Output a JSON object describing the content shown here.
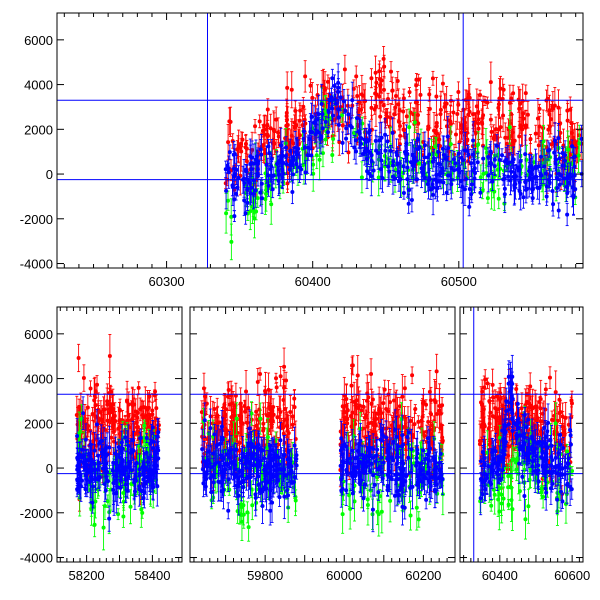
{
  "chart_data": [
    {
      "type": "scatter",
      "title": "",
      "xlabel": "",
      "ylabel": "",
      "xlim": [
        60225,
        60585
      ],
      "ylim": [
        -4200,
        7200
      ],
      "x_ticks": [
        60300,
        60400,
        60500
      ],
      "y_ticks": [
        -4000,
        -2000,
        0,
        2000,
        4000,
        6000
      ],
      "hlines": [
        3300,
        -250
      ],
      "vlines": [
        60328,
        60503
      ],
      "grid": false,
      "series": [
        {
          "color": "#ff0000",
          "y_center_profile": [
            [
              60340,
              600
            ],
            [
              60380,
              1500
            ],
            [
              60410,
              2800
            ],
            [
              60440,
              3200
            ],
            [
              60480,
              2300
            ],
            [
              60530,
              2300
            ],
            [
              60585,
              1500
            ]
          ],
          "y_spread": 1400
        },
        {
          "color": "#00ff00",
          "y_center_profile": [
            [
              60350,
              -1500
            ],
            [
              60400,
              1200
            ],
            [
              60415,
              2500
            ],
            [
              60440,
              300
            ],
            [
              60500,
              300
            ],
            [
              60585,
              0
            ]
          ],
          "y_spread": 1200
        },
        {
          "color": "#0000ff",
          "y_center_profile": [
            [
              60340,
              -500
            ],
            [
              60390,
              600
            ],
            [
              60415,
              3400
            ],
            [
              60440,
              1000
            ],
            [
              60480,
              200
            ],
            [
              60585,
              0
            ]
          ],
          "y_spread": 1100
        }
      ]
    },
    {
      "type": "scatter",
      "title": "",
      "xlabel": "",
      "ylabel": "",
      "ylim": [
        -4200,
        7200
      ],
      "x_ticks": [
        58200,
        58400,
        59800,
        60000,
        60200,
        60400,
        60600
      ],
      "y_ticks": [
        -4000,
        -2000,
        0,
        2000,
        4000,
        6000
      ],
      "hlines": [
        3300,
        -250
      ],
      "vlines": [
        60328
      ],
      "grid": false,
      "segments": [
        {
          "xlim": [
            58110,
            58490
          ],
          "x_data": [
            58170,
            58420
          ]
        },
        {
          "xlim": [
            59610,
            60280
          ],
          "x_data": [
            59640,
            59880
          ]
        },
        {
          "xlim": [
            59610,
            60280
          ],
          "x_data": [
            59990,
            60250
          ]
        },
        {
          "xlim": [
            60290,
            60630
          ],
          "x_data": [
            60345,
            60600
          ]
        }
      ],
      "series": [
        {
          "color": "#ff0000",
          "y_center": 1800,
          "y_spread": 1600
        },
        {
          "color": "#00ff00",
          "y_center": -200,
          "y_spread": 1600
        },
        {
          "color": "#0000ff",
          "y_center": 0,
          "y_spread": 1200
        }
      ]
    }
  ]
}
